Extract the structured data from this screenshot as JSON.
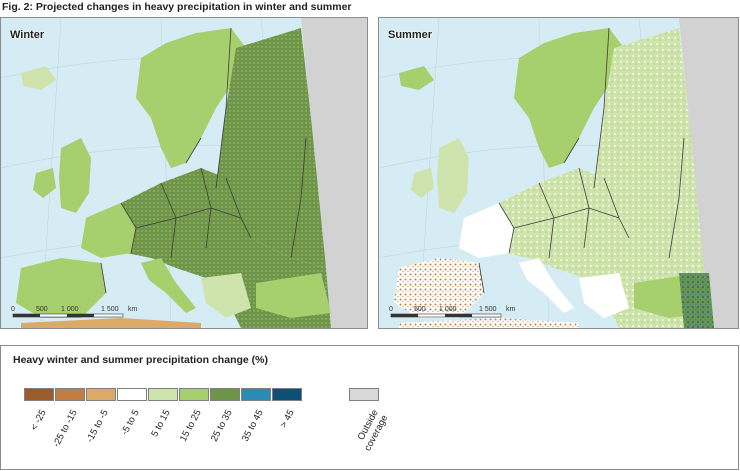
{
  "figure": {
    "title": "Fig. 2: Projected changes in heavy precipitation in winter and summer"
  },
  "maps": [
    {
      "title": "Winter",
      "scale_labels": [
        "0",
        "500",
        "1 000",
        "1 500",
        "km"
      ]
    },
    {
      "title": "Summer",
      "scale_labels": [
        "0",
        "500",
        "1 000",
        "1 500",
        "km"
      ]
    }
  ],
  "legend": {
    "title": "Heavy winter and summer precipitation change (%)",
    "classes": [
      {
        "label": "< -25",
        "color": "#9c5b2a"
      },
      {
        "label": "-25 to -15",
        "color": "#c17d43"
      },
      {
        "label": "-15 to -5",
        "color": "#dba968"
      },
      {
        "label": "-5 to 5",
        "color": "#ffffff"
      },
      {
        "label": "5 to 15",
        "color": "#cfe4ad"
      },
      {
        "label": "15 to 25",
        "color": "#a6cf6e"
      },
      {
        "label": "25 to 35",
        "color": "#6e944a"
      },
      {
        "label": "35 to 45",
        "color": "#2a8cb4"
      },
      {
        "label": "> 45",
        "color": "#0d4f75"
      }
    ],
    "outside": {
      "label": "Outside coverage",
      "color": "#d9d9d9"
    }
  },
  "colors": {
    "sea": "#d6ecf4",
    "land_outside": "#d2d2d2",
    "border": "#3c3c3c"
  }
}
